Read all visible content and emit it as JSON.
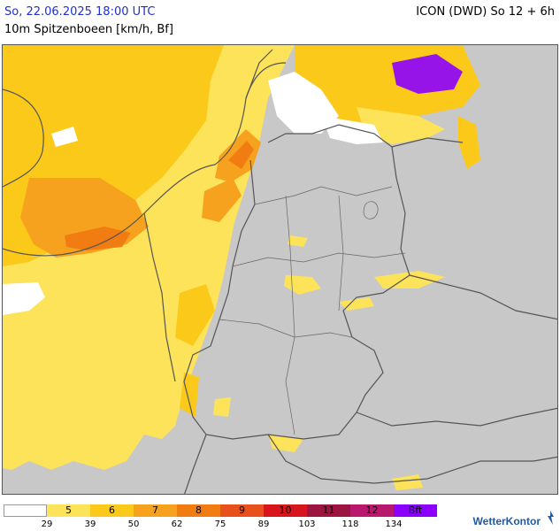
{
  "header": {
    "date_time": "So, 22.06.2025 18:00 UTC",
    "model_run": "ICON (DWD) So 12 + 6h",
    "parameter": "10m Spitzenboeen [km/h, Bf]"
  },
  "legend": {
    "classes": [
      {
        "label": "",
        "color": "#ffffff"
      },
      {
        "label": "5",
        "color": "#fde35a"
      },
      {
        "label": "6",
        "color": "#fbc91a"
      },
      {
        "label": "7",
        "color": "#f7a21e"
      },
      {
        "label": "8",
        "color": "#f17c12"
      },
      {
        "label": "9",
        "color": "#e8501c"
      },
      {
        "label": "10",
        "color": "#d8141c"
      },
      {
        "label": "11",
        "color": "#9c1440"
      },
      {
        "label": "12",
        "color": "#b8186e"
      },
      {
        "label": "Bft",
        "color": "#8c00ff"
      }
    ],
    "thresholds": [
      "29",
      "39",
      "50",
      "62",
      "75",
      "89",
      "103",
      "118",
      "134"
    ]
  },
  "map": {
    "land_no_data_color": "#c8c8c8",
    "sea_color": "#ffffff",
    "border_color": "#555555"
  },
  "brand": {
    "name": "WetterKontor",
    "icon": "wetterkontor-logo-icon"
  }
}
